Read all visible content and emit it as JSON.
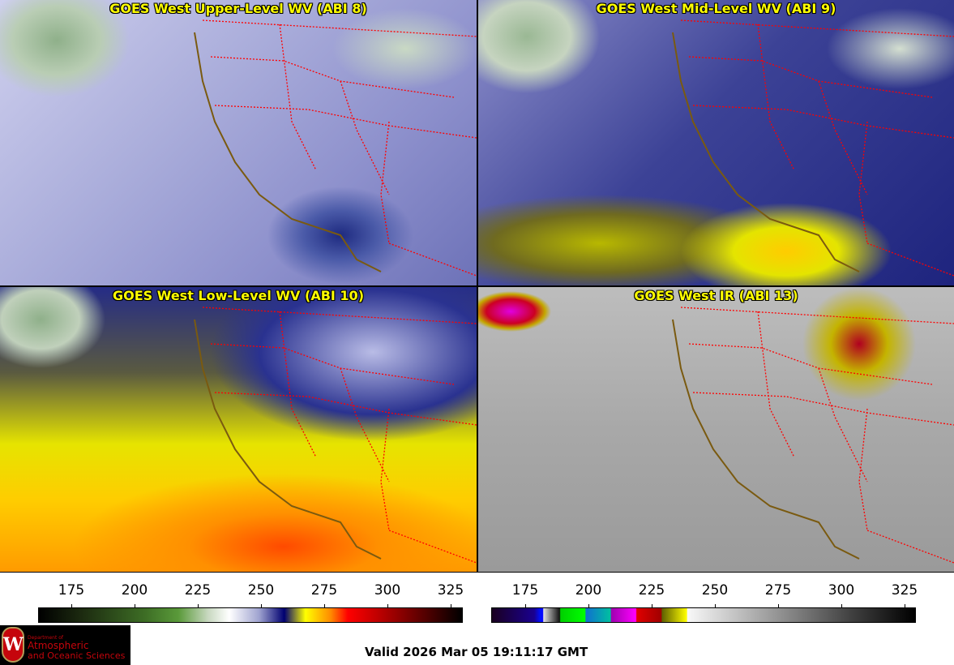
{
  "panels": [
    {
      "title": "GOES West Upper-Level WV (ABI 8)"
    },
    {
      "title": "GOES West Mid-Level WV (ABI 9)"
    },
    {
      "title": "GOES West Low-Level WV (ABI 10)"
    },
    {
      "title": "GOES West IR (ABI 13)"
    }
  ],
  "colorbars": [
    {
      "name": "water-vapor",
      "ticks": [
        "175",
        "200",
        "225",
        "250",
        "275",
        "300",
        "325"
      ]
    },
    {
      "name": "infrared",
      "ticks": [
        "175",
        "200",
        "225",
        "250",
        "275",
        "300",
        "325"
      ]
    }
  ],
  "colors": {
    "title": "#ffff00",
    "state_borders": "#ff0000",
    "coastline": "#8b5a00"
  },
  "logo": {
    "line1": "Department of",
    "line2": "Atmospheric",
    "line3": "and Oceanic Sciences",
    "crest_letter": "W"
  },
  "valid_time": "Valid 2026 Mar 05 19:11:17 GMT"
}
